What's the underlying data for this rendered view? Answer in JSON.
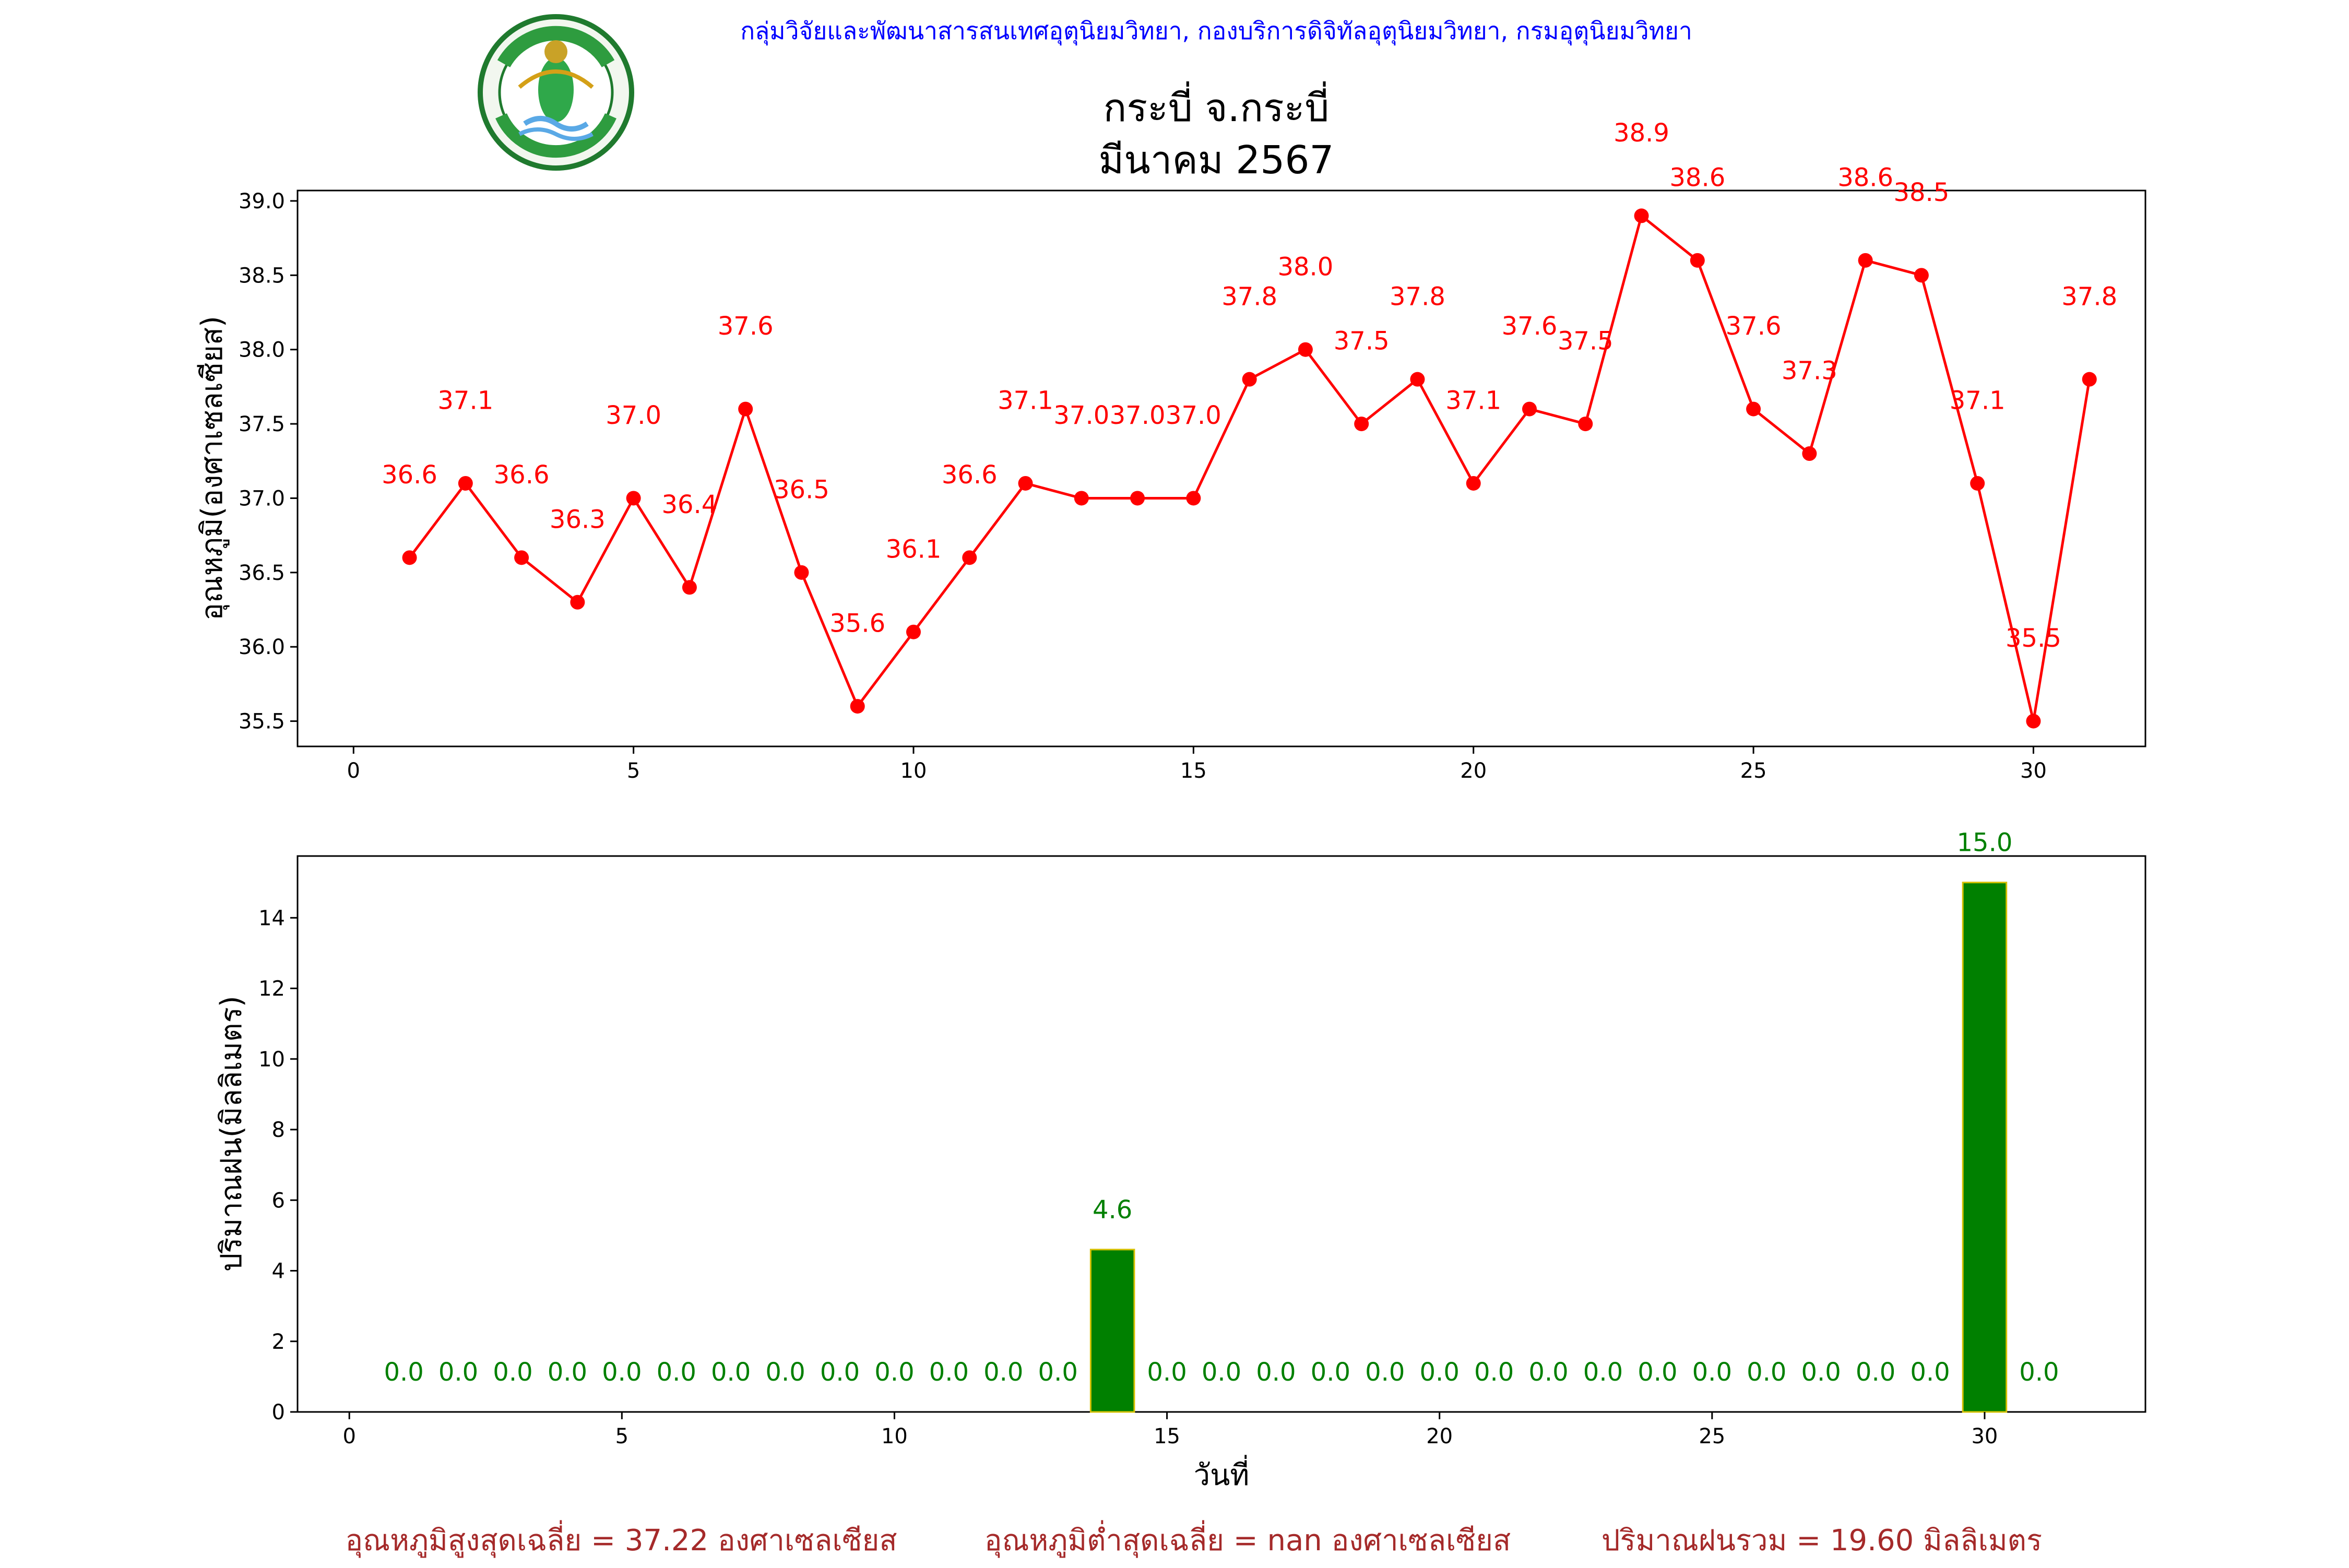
{
  "header": {
    "org_line": "กลุ่มวิจัยและพัฒนาสารสนเทศอุตุนิยมวิทยา, กองบริการดิจิทัลอุตุนิยมวิทยา, กรมอุตุนิยมวิทยา",
    "title_line1": "กระบี่ จ.กระบี่",
    "title_line2": "มีนาคม 2567",
    "logo_icon": "meteorological-department-seal"
  },
  "colors": {
    "temp_line": "#ff0000",
    "rain_bar": "#008000",
    "rain_edge": "#d4c000",
    "rain_label": "#008000",
    "org_text": "#0000ff",
    "summary_text": "#a52a2a"
  },
  "chart_data": [
    {
      "type": "line",
      "x": [
        1,
        2,
        3,
        4,
        5,
        6,
        7,
        8,
        9,
        10,
        11,
        12,
        13,
        14,
        15,
        16,
        17,
        18,
        19,
        20,
        21,
        22,
        23,
        24,
        25,
        26,
        27,
        28,
        29,
        30,
        31
      ],
      "series": [
        {
          "values": [
            36.6,
            37.1,
            36.6,
            36.3,
            37.0,
            36.4,
            37.6,
            36.5,
            35.6,
            36.1,
            36.6,
            37.1,
            37.0,
            37.0,
            37.0,
            37.8,
            38.0,
            37.5,
            37.8,
            37.1,
            37.6,
            37.5,
            38.9,
            38.6,
            37.6,
            37.3,
            38.6,
            38.5,
            37.1,
            35.5,
            37.8
          ]
        }
      ],
      "xlabel": "",
      "ylabel": "อุณหภูมิ(องศาเซลเซียส)",
      "xlim": [
        -1,
        32
      ],
      "ylim": [
        35.33,
        39.07
      ],
      "xticks": [
        0,
        5,
        10,
        15,
        20,
        25,
        30
      ],
      "yticks": [
        35.5,
        36.0,
        36.5,
        37.0,
        37.5,
        38.0,
        38.5,
        39.0
      ],
      "grid": false,
      "data_labels": true
    },
    {
      "type": "bar",
      "x": [
        1,
        2,
        3,
        4,
        5,
        6,
        7,
        8,
        9,
        10,
        11,
        12,
        13,
        14,
        15,
        16,
        17,
        18,
        19,
        20,
        21,
        22,
        23,
        24,
        25,
        26,
        27,
        28,
        29,
        30,
        31
      ],
      "series": [
        {
          "values": [
            0.0,
            0.0,
            0.0,
            0.0,
            0.0,
            0.0,
            0.0,
            0.0,
            0.0,
            0.0,
            0.0,
            0.0,
            0.0,
            4.6,
            0.0,
            0.0,
            0.0,
            0.0,
            0.0,
            0.0,
            0.0,
            0.0,
            0.0,
            0.0,
            0.0,
            0.0,
            0.0,
            0.0,
            0.0,
            15.0,
            0.0
          ]
        }
      ],
      "xlabel": "วันที่",
      "ylabel": "ปริมาณฝน(มิลลิเมตร)",
      "xlim": [
        -0.95,
        32.95
      ],
      "ylim": [
        0,
        15.75
      ],
      "xticks": [
        0,
        5,
        10,
        15,
        20,
        25,
        30
      ],
      "yticks": [
        0,
        2,
        4,
        6,
        8,
        10,
        12,
        14
      ],
      "grid": false,
      "data_labels": true
    }
  ],
  "summary": {
    "max_avg": "อุณหภูมิสูงสุดเฉลี่ย = 37.22 องศาเซลเซียส",
    "min_avg": "อุณหภูมิต่ำสุดเฉลี่ย = nan องศาเซลเซียส",
    "rain_total": "ปริมาณฝนรวม = 19.60 มิลลิเมตร"
  }
}
